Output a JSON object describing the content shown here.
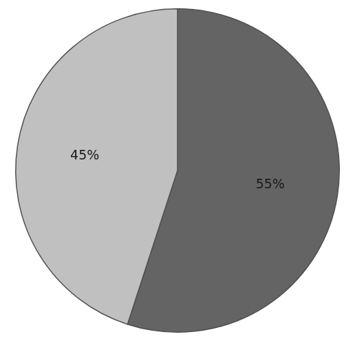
{
  "chart_data": {
    "type": "pie",
    "values": [
      55,
      45
    ],
    "value_labels": [
      "55%",
      "45%"
    ],
    "colors": [
      "#646464",
      "#c0c0c0"
    ],
    "data_labels": true
  }
}
